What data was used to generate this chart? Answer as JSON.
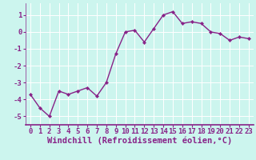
{
  "x": [
    0,
    1,
    2,
    3,
    4,
    5,
    6,
    7,
    8,
    9,
    10,
    11,
    12,
    13,
    14,
    15,
    16,
    17,
    18,
    19,
    20,
    21,
    22,
    23
  ],
  "y": [
    -3.7,
    -4.5,
    -5.0,
    -3.5,
    -3.7,
    -3.5,
    -3.3,
    -3.8,
    -3.0,
    -1.3,
    0.0,
    0.1,
    -0.6,
    0.2,
    1.0,
    1.2,
    0.5,
    0.6,
    0.5,
    0.0,
    -0.1,
    -0.5,
    -0.3,
    -0.4
  ],
  "line_color": "#882288",
  "marker": "D",
  "marker_size": 2.2,
  "bg_color": "#ccf5ee",
  "grid_color": "#ffffff",
  "xlabel": "Windchill (Refroidissement éolien,°C)",
  "xlim": [
    -0.5,
    23.5
  ],
  "ylim": [
    -5.5,
    1.7
  ],
  "yticks": [
    -5,
    -4,
    -3,
    -2,
    -1,
    0,
    1
  ],
  "xticks": [
    0,
    1,
    2,
    3,
    4,
    5,
    6,
    7,
    8,
    9,
    10,
    11,
    12,
    13,
    14,
    15,
    16,
    17,
    18,
    19,
    20,
    21,
    22,
    23
  ],
  "tick_label_fontsize": 6.5,
  "xlabel_fontsize": 7.5,
  "line_width": 1.0,
  "spine_color": "#882288"
}
